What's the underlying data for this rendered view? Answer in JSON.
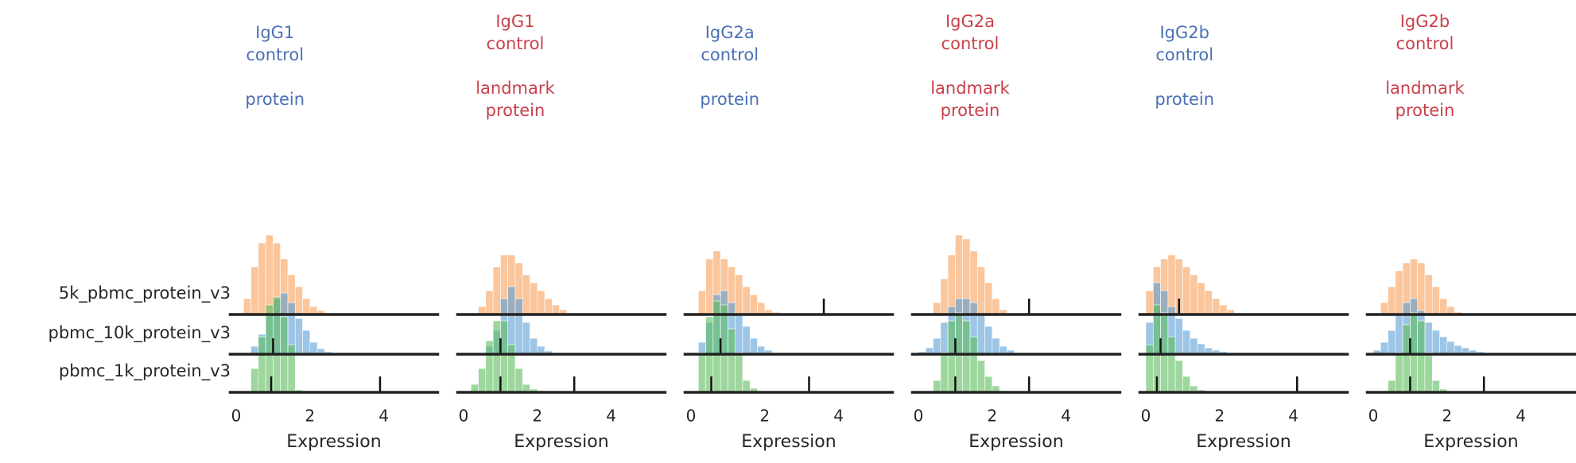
{
  "chart_data": [
    {
      "type": "histogram",
      "title": "IgG1\ncontrol\n\nprotein",
      "title_color": "#4a6fb5",
      "xlabel": "Expression",
      "xlim": [
        -0.2,
        5.5
      ],
      "xticks": [
        0,
        2,
        4
      ],
      "series": [
        {
          "name": "5k_pbmc_protein_v3",
          "color": "#f9a05a",
          "bins": [
            0.2,
            0.4,
            0.6,
            0.8,
            1.0,
            1.2,
            1.4,
            1.6,
            1.8,
            2.0,
            2.2,
            2.4
          ],
          "values": [
            2,
            6,
            9,
            10,
            9,
            7,
            5,
            3.5,
            2,
            1,
            0.5
          ],
          "markers": []
        },
        {
          "name": "pbmc_10k_protein_v3",
          "color": "#5c9fd6",
          "bins": [
            0.4,
            0.6,
            0.8,
            1.0,
            1.2,
            1.4,
            1.6,
            1.8,
            2.0,
            2.2,
            2.4,
            2.6
          ],
          "values": [
            1,
            2.5,
            5,
            7,
            7.7,
            6.5,
            4.5,
            3,
            1.5,
            0.7,
            0.3
          ],
          "markers": [
            1.0
          ]
        },
        {
          "name": "pbmc_1k_protein_v3",
          "color": "#5cbd5c",
          "bins": [
            0.4,
            0.6,
            0.8,
            1.0,
            1.2,
            1.4,
            1.6,
            1.8,
            2.0,
            2.2,
            2.4
          ],
          "values": [
            3,
            7,
            11,
            12,
            9.5,
            6,
            0.3,
            0.2,
            0.2,
            0.1
          ],
          "markers": [
            0.95,
            3.9
          ]
        }
      ]
    },
    {
      "type": "histogram",
      "title": "IgG1\ncontrol\n\nlandmark\nprotein",
      "title_color": "#c9404a",
      "xlabel": "Expression",
      "xlim": [
        -0.2,
        5.5
      ],
      "xticks": [
        0,
        2,
        4
      ],
      "series": [
        {
          "name": "5k_pbmc_protein_v3",
          "color": "#f9a05a",
          "bins": [
            0.4,
            0.6,
            0.8,
            1.0,
            1.2,
            1.4,
            1.6,
            1.8,
            2.0,
            2.2,
            2.4,
            2.6,
            2.8,
            3.0
          ],
          "values": [
            1,
            3,
            6,
            7.5,
            7.5,
            6.5,
            5,
            4,
            3,
            2,
            1.2,
            0.6,
            0.2
          ],
          "markers": []
        },
        {
          "name": "pbmc_10k_protein_v3",
          "color": "#5c9fd6",
          "bins": [
            0.6,
            0.8,
            1.0,
            1.2,
            1.4,
            1.6,
            1.8,
            2.0,
            2.2,
            2.4
          ],
          "values": [
            1,
            3,
            7,
            8.5,
            7,
            4,
            2,
            1,
            0.4
          ],
          "markers": [
            1.0
          ]
        },
        {
          "name": "pbmc_1k_protein_v3",
          "color": "#5cbd5c",
          "bins": [
            0.2,
            0.4,
            0.6,
            0.8,
            1.0,
            1.2,
            1.4,
            1.6,
            1.8,
            2.0,
            2.2
          ],
          "values": [
            1,
            3,
            6.5,
            9,
            9,
            6,
            3,
            1,
            0.4,
            0.2
          ],
          "markers": [
            1.0,
            3.0
          ]
        }
      ]
    },
    {
      "type": "histogram",
      "title": "IgG2a\ncontrol\n\nprotein",
      "title_color": "#4a6fb5",
      "xlabel": "Expression",
      "xlim": [
        -0.2,
        5.5
      ],
      "xticks": [
        0,
        2,
        4
      ],
      "series": [
        {
          "name": "5k_pbmc_protein_v3",
          "color": "#f9a05a",
          "bins": [
            0.2,
            0.4,
            0.6,
            0.8,
            1.0,
            1.2,
            1.4,
            1.6,
            1.8,
            2.0,
            2.2,
            2.4
          ],
          "values": [
            3,
            7,
            8,
            7,
            6,
            5,
            3.5,
            2.5,
            1.5,
            0.6,
            0.3
          ],
          "markers": [
            3.6
          ]
        },
        {
          "name": "pbmc_10k_protein_v3",
          "color": "#5c9fd6",
          "bins": [
            0.2,
            0.4,
            0.6,
            0.8,
            1.0,
            1.2,
            1.4,
            1.6,
            1.8,
            2.0,
            2.2,
            2.4
          ],
          "values": [
            1.5,
            4,
            7.5,
            8,
            6.5,
            5,
            3.5,
            2,
            1,
            0.5,
            0.2
          ],
          "markers": [
            0.8
          ]
        },
        {
          "name": "pbmc_1k_protein_v3",
          "color": "#5cbd5c",
          "bins": [
            0.2,
            0.4,
            0.6,
            0.8,
            1.0,
            1.2,
            1.4,
            1.6,
            1.8
          ],
          "values": [
            5,
            9.5,
            11.5,
            11,
            8,
            5,
            1.5,
            0.5
          ],
          "markers": [
            0.55,
            3.2
          ]
        }
      ]
    },
    {
      "type": "histogram",
      "title": "IgG2a\ncontrol\n\nlandmark\nprotein",
      "title_color": "#c9404a",
      "xlabel": "Expression",
      "xlim": [
        -0.2,
        5.5
      ],
      "xticks": [
        0,
        2,
        4
      ],
      "series": [
        {
          "name": "5k_pbmc_protein_v3",
          "color": "#f9a05a",
          "bins": [
            0.4,
            0.6,
            0.8,
            1.0,
            1.2,
            1.4,
            1.6,
            1.8,
            2.0,
            2.2,
            2.4
          ],
          "values": [
            1.5,
            4.5,
            7.5,
            10,
            9.5,
            8,
            6,
            4,
            2,
            0.6
          ],
          "markers": [
            3.0
          ]
        },
        {
          "name": "pbmc_10k_protein_v3",
          "color": "#5c9fd6",
          "bins": [
            0.0,
            0.2,
            0.4,
            0.6,
            0.8,
            1.0,
            1.2,
            1.4,
            1.6,
            1.8,
            2.0,
            2.2,
            2.4,
            2.6
          ],
          "values": [
            0.3,
            0.8,
            2,
            4,
            6,
            7,
            7,
            6.5,
            5,
            3.5,
            2,
            1,
            0.5
          ],
          "markers": [
            1.0
          ]
        },
        {
          "name": "pbmc_1k_protein_v3",
          "color": "#5cbd5c",
          "bins": [
            0.4,
            0.6,
            0.8,
            1.0,
            1.2,
            1.4,
            1.6,
            1.8,
            2.0,
            2.2,
            2.4
          ],
          "values": [
            1.5,
            5,
            9,
            10,
            9,
            7,
            4,
            2,
            0.8,
            0.2
          ],
          "markers": [
            1.0,
            3.0
          ]
        }
      ]
    },
    {
      "type": "histogram",
      "title": "IgG2b\ncontrol\n\nprotein",
      "title_color": "#4a6fb5",
      "xlabel": "Expression",
      "xlim": [
        -0.2,
        5.5
      ],
      "xticks": [
        0,
        2,
        4
      ],
      "series": [
        {
          "name": "5k_pbmc_protein_v3",
          "color": "#f9a05a",
          "bins": [
            0.0,
            0.2,
            0.4,
            0.6,
            0.8,
            1.0,
            1.2,
            1.4,
            1.6,
            1.8,
            2.0,
            2.2,
            2.4,
            2.6
          ],
          "values": [
            3,
            6,
            7,
            7.5,
            7,
            6,
            5,
            4,
            3,
            2,
            1.2,
            0.6,
            0.2
          ],
          "markers": [
            0.9
          ]
        },
        {
          "name": "pbmc_10k_protein_v3",
          "color": "#5c9fd6",
          "bins": [
            0.0,
            0.2,
            0.4,
            0.6,
            0.8,
            1.0,
            1.2,
            1.4,
            1.6,
            1.8,
            2.0,
            2.2,
            2.4
          ],
          "values": [
            4,
            9,
            8,
            6,
            4.5,
            3,
            2,
            1.3,
            0.8,
            0.5,
            0.3,
            0.1
          ],
          "markers": [
            0.4
          ]
        },
        {
          "name": "pbmc_1k_protein_v3",
          "color": "#5cbd5c",
          "bins": [
            0.0,
            0.2,
            0.4,
            0.6,
            0.8,
            1.0,
            1.2,
            1.4,
            1.6
          ],
          "values": [
            6,
            11,
            10,
            7,
            4,
            2,
            0.8,
            0.3
          ],
          "markers": [
            0.3,
            4.1
          ]
        }
      ]
    },
    {
      "type": "histogram",
      "title": "IgG2b\ncontrol\n\nlandmark\nprotein",
      "title_color": "#c9404a",
      "xlabel": "Expression",
      "xlim": [
        -0.2,
        5.5
      ],
      "xticks": [
        0,
        2,
        4
      ],
      "series": [
        {
          "name": "5k_pbmc_protein_v3",
          "color": "#f9a05a",
          "bins": [
            0.2,
            0.4,
            0.6,
            0.8,
            1.0,
            1.2,
            1.4,
            1.6,
            1.8,
            2.0,
            2.2,
            2.4
          ],
          "values": [
            1.5,
            3.5,
            5.5,
            6.5,
            7,
            6.5,
            5,
            3.5,
            2,
            1,
            0.3
          ],
          "markers": []
        },
        {
          "name": "pbmc_10k_protein_v3",
          "color": "#5c9fd6",
          "bins": [
            0.0,
            0.2,
            0.4,
            0.6,
            0.8,
            1.0,
            1.2,
            1.4,
            1.6,
            1.8,
            2.0,
            2.2,
            2.4,
            2.6,
            2.8,
            3.0,
            3.2,
            3.4
          ],
          "values": [
            0.5,
            1.5,
            3,
            5,
            6.5,
            7,
            5.5,
            4,
            3,
            2.2,
            1.6,
            1.1,
            0.8,
            0.5,
            0.3,
            0.2,
            0.1
          ],
          "markers": [
            1.0
          ]
        },
        {
          "name": "pbmc_1k_protein_v3",
          "color": "#5cbd5c",
          "bins": [
            0.4,
            0.6,
            0.8,
            1.0,
            1.2,
            1.4,
            1.6,
            1.8,
            2.0
          ],
          "values": [
            1.5,
            5,
            8.5,
            10,
            9,
            5,
            1.5,
            0.4
          ],
          "markers": [
            1.0,
            3.0
          ]
        }
      ]
    }
  ]
}
